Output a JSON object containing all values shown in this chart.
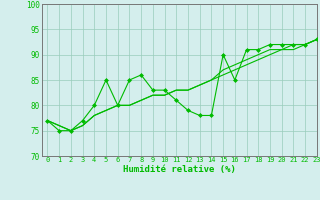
{
  "x": [
    0,
    1,
    2,
    3,
    4,
    5,
    6,
    7,
    8,
    9,
    10,
    11,
    12,
    13,
    14,
    15,
    16,
    17,
    18,
    19,
    20,
    21,
    22,
    23
  ],
  "line_jagged": [
    77,
    75,
    75,
    77,
    80,
    85,
    80,
    85,
    86,
    83,
    83,
    81,
    79,
    78,
    78,
    90,
    85,
    91,
    91,
    92,
    92,
    92,
    92,
    93
  ],
  "line_smooth1": [
    77,
    76,
    75,
    76,
    78,
    79,
    80,
    80,
    81,
    82,
    82,
    83,
    83,
    84,
    85,
    87,
    88,
    89,
    90,
    91,
    91,
    92,
    92,
    93
  ],
  "line_smooth2": [
    77,
    76,
    75,
    76,
    78,
    79,
    80,
    80,
    81,
    82,
    82,
    83,
    83,
    84,
    85,
    86,
    87,
    88,
    89,
    90,
    91,
    91,
    92,
    93
  ],
  "line_color": "#00bb00",
  "bg_color": "#d4eeed",
  "grid_color": "#99ccbb",
  "xlabel": "Humidité relative (%)",
  "ylim": [
    70,
    100
  ],
  "xlim": [
    -0.5,
    23
  ],
  "yticks": [
    70,
    75,
    80,
    85,
    90,
    95,
    100
  ],
  "xticks": [
    0,
    1,
    2,
    3,
    4,
    5,
    6,
    7,
    8,
    9,
    10,
    11,
    12,
    13,
    14,
    15,
    16,
    17,
    18,
    19,
    20,
    21,
    22,
    23
  ]
}
